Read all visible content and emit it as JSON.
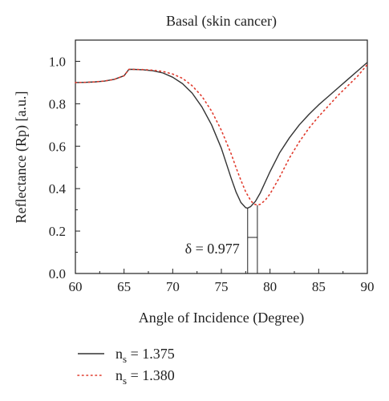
{
  "chart_data": {
    "type": "line",
    "title": "Basal (skin cancer)",
    "xlabel": "Angle of Incidence (Degree)",
    "ylabel": "Reflectance (Rp) [a.u.]",
    "xlim": [
      60,
      90
    ],
    "ylim": [
      0,
      1.1
    ],
    "xticks": [
      60,
      65,
      70,
      75,
      80,
      85,
      90
    ],
    "yticks": [
      0.0,
      0.2,
      0.4,
      0.6,
      0.8,
      1.0
    ],
    "ytick_labels": [
      "0.0",
      "0.2",
      "0.4",
      "0.6",
      "0.8",
      "1.0"
    ],
    "grid": false,
    "legend_position": "below",
    "annotation": {
      "text": "δ = 0.977",
      "x_left": 77.7,
      "x_right": 78.7,
      "y_arrow": 0.17
    },
    "series": [
      {
        "label_main": "n",
        "label_sub": "s",
        "label_value": " = 1.375",
        "color": "#333333",
        "style": "solid",
        "x": [
          60,
          61,
          62,
          63,
          64,
          65,
          65.3,
          65.5,
          66,
          67,
          68,
          69,
          70,
          71,
          72,
          73,
          74,
          75,
          75.5,
          76,
          76.5,
          77,
          77.5,
          77.7,
          78,
          78.5,
          79,
          80,
          81,
          82,
          83,
          84,
          85,
          86,
          87,
          88,
          89,
          90
        ],
        "y": [
          0.9,
          0.901,
          0.903,
          0.907,
          0.915,
          0.932,
          0.95,
          0.962,
          0.962,
          0.96,
          0.955,
          0.945,
          0.925,
          0.895,
          0.85,
          0.785,
          0.7,
          0.59,
          0.52,
          0.45,
          0.385,
          0.335,
          0.31,
          0.308,
          0.315,
          0.34,
          0.38,
          0.48,
          0.57,
          0.64,
          0.7,
          0.75,
          0.795,
          0.835,
          0.875,
          0.915,
          0.955,
          0.995
        ]
      },
      {
        "label_main": "n",
        "label_sub": "s",
        "label_value": " = 1.380",
        "color": "#e03a2c",
        "style": "dotted",
        "x": [
          60,
          61,
          62,
          63,
          64,
          65,
          65.3,
          65.5,
          66,
          67,
          68,
          69,
          70,
          71,
          72,
          73,
          74,
          75,
          76,
          76.5,
          77,
          77.5,
          78,
          78.3,
          78.7,
          79,
          79.5,
          80,
          81,
          82,
          83,
          84,
          85,
          86,
          87,
          88,
          89,
          90
        ],
        "y": [
          0.9,
          0.901,
          0.903,
          0.907,
          0.915,
          0.932,
          0.95,
          0.962,
          0.962,
          0.961,
          0.958,
          0.952,
          0.94,
          0.92,
          0.885,
          0.835,
          0.765,
          0.675,
          0.565,
          0.5,
          0.44,
          0.385,
          0.345,
          0.328,
          0.322,
          0.326,
          0.345,
          0.375,
          0.455,
          0.545,
          0.62,
          0.685,
          0.74,
          0.79,
          0.84,
          0.885,
          0.93,
          0.985
        ]
      }
    ]
  }
}
